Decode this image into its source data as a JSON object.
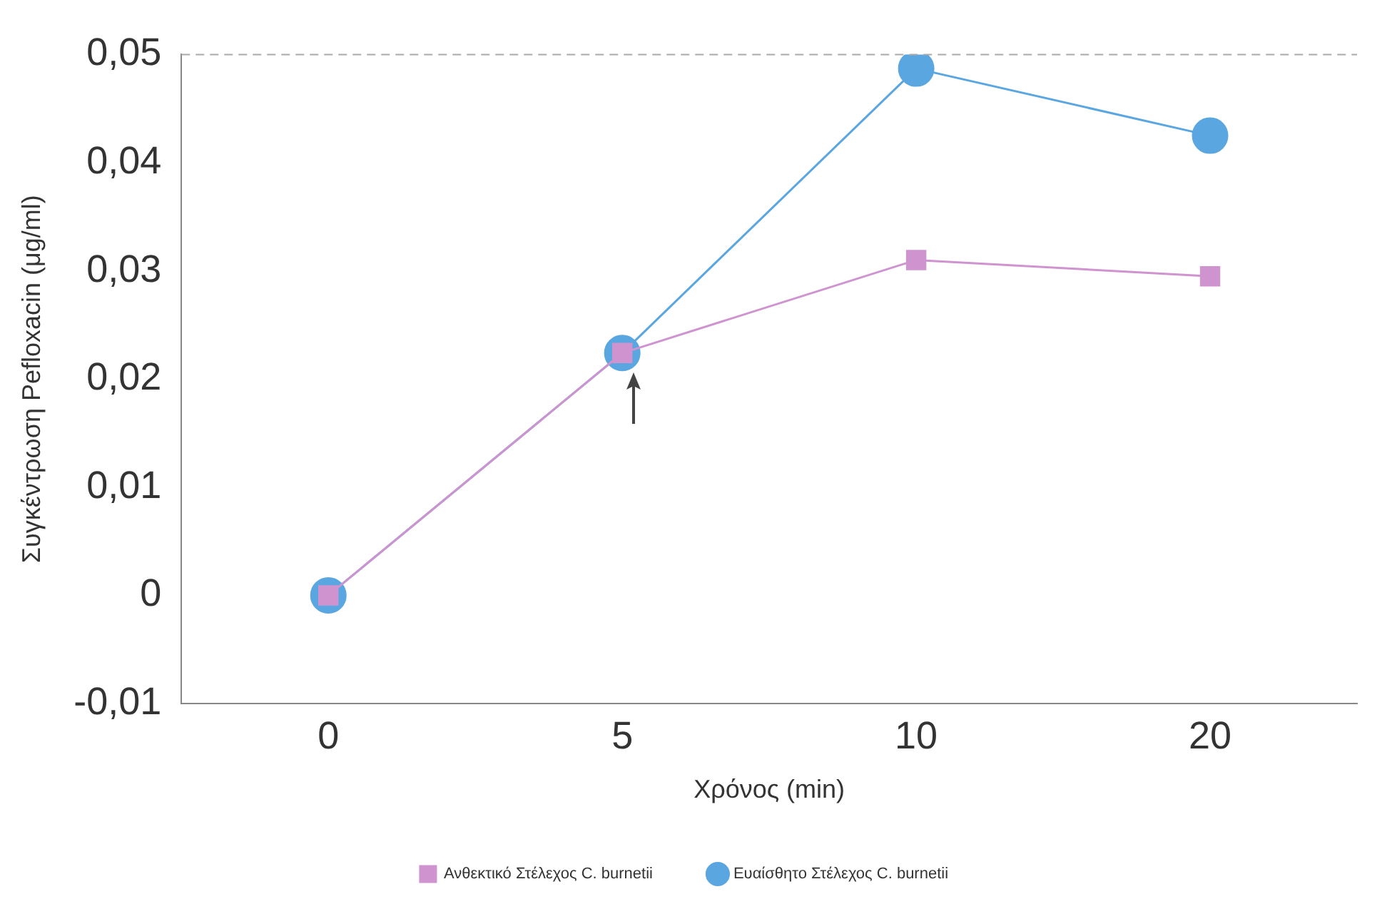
{
  "chart_data": {
    "type": "line",
    "xlabel": "Χρόνος (min)",
    "ylabel": "Συγκέντρωση Pefloxacin (μg/ml)",
    "categories": [
      "0",
      "5",
      "10",
      "20"
    ],
    "series": [
      {
        "name": "Ευαίσθητο Στέλεχος C. burnetii",
        "color": "#5aa6e0",
        "marker": "circle",
        "values": [
          0,
          0.0224,
          0.0487,
          0.0425
        ]
      },
      {
        "name": "Ανθεκτικό Στέλεχος C. burnetii",
        "color": "#cf94cf",
        "marker": "square",
        "values": [
          0,
          0.0224,
          0.031,
          0.0295
        ]
      }
    ],
    "ylim": [
      -0.01,
      0.05
    ],
    "yticks": [
      {
        "value": -0.01,
        "label": "-0,01"
      },
      {
        "value": 0,
        "label": "0"
      },
      {
        "value": 0.01,
        "label": "0,01"
      },
      {
        "value": 0.02,
        "label": "0,02"
      },
      {
        "value": 0.03,
        "label": "0,03"
      },
      {
        "value": 0.04,
        "label": "0,04"
      },
      {
        "value": 0.05,
        "label": "0,05"
      }
    ],
    "grid": false,
    "legend": "bottom",
    "line_style": "solid"
  }
}
